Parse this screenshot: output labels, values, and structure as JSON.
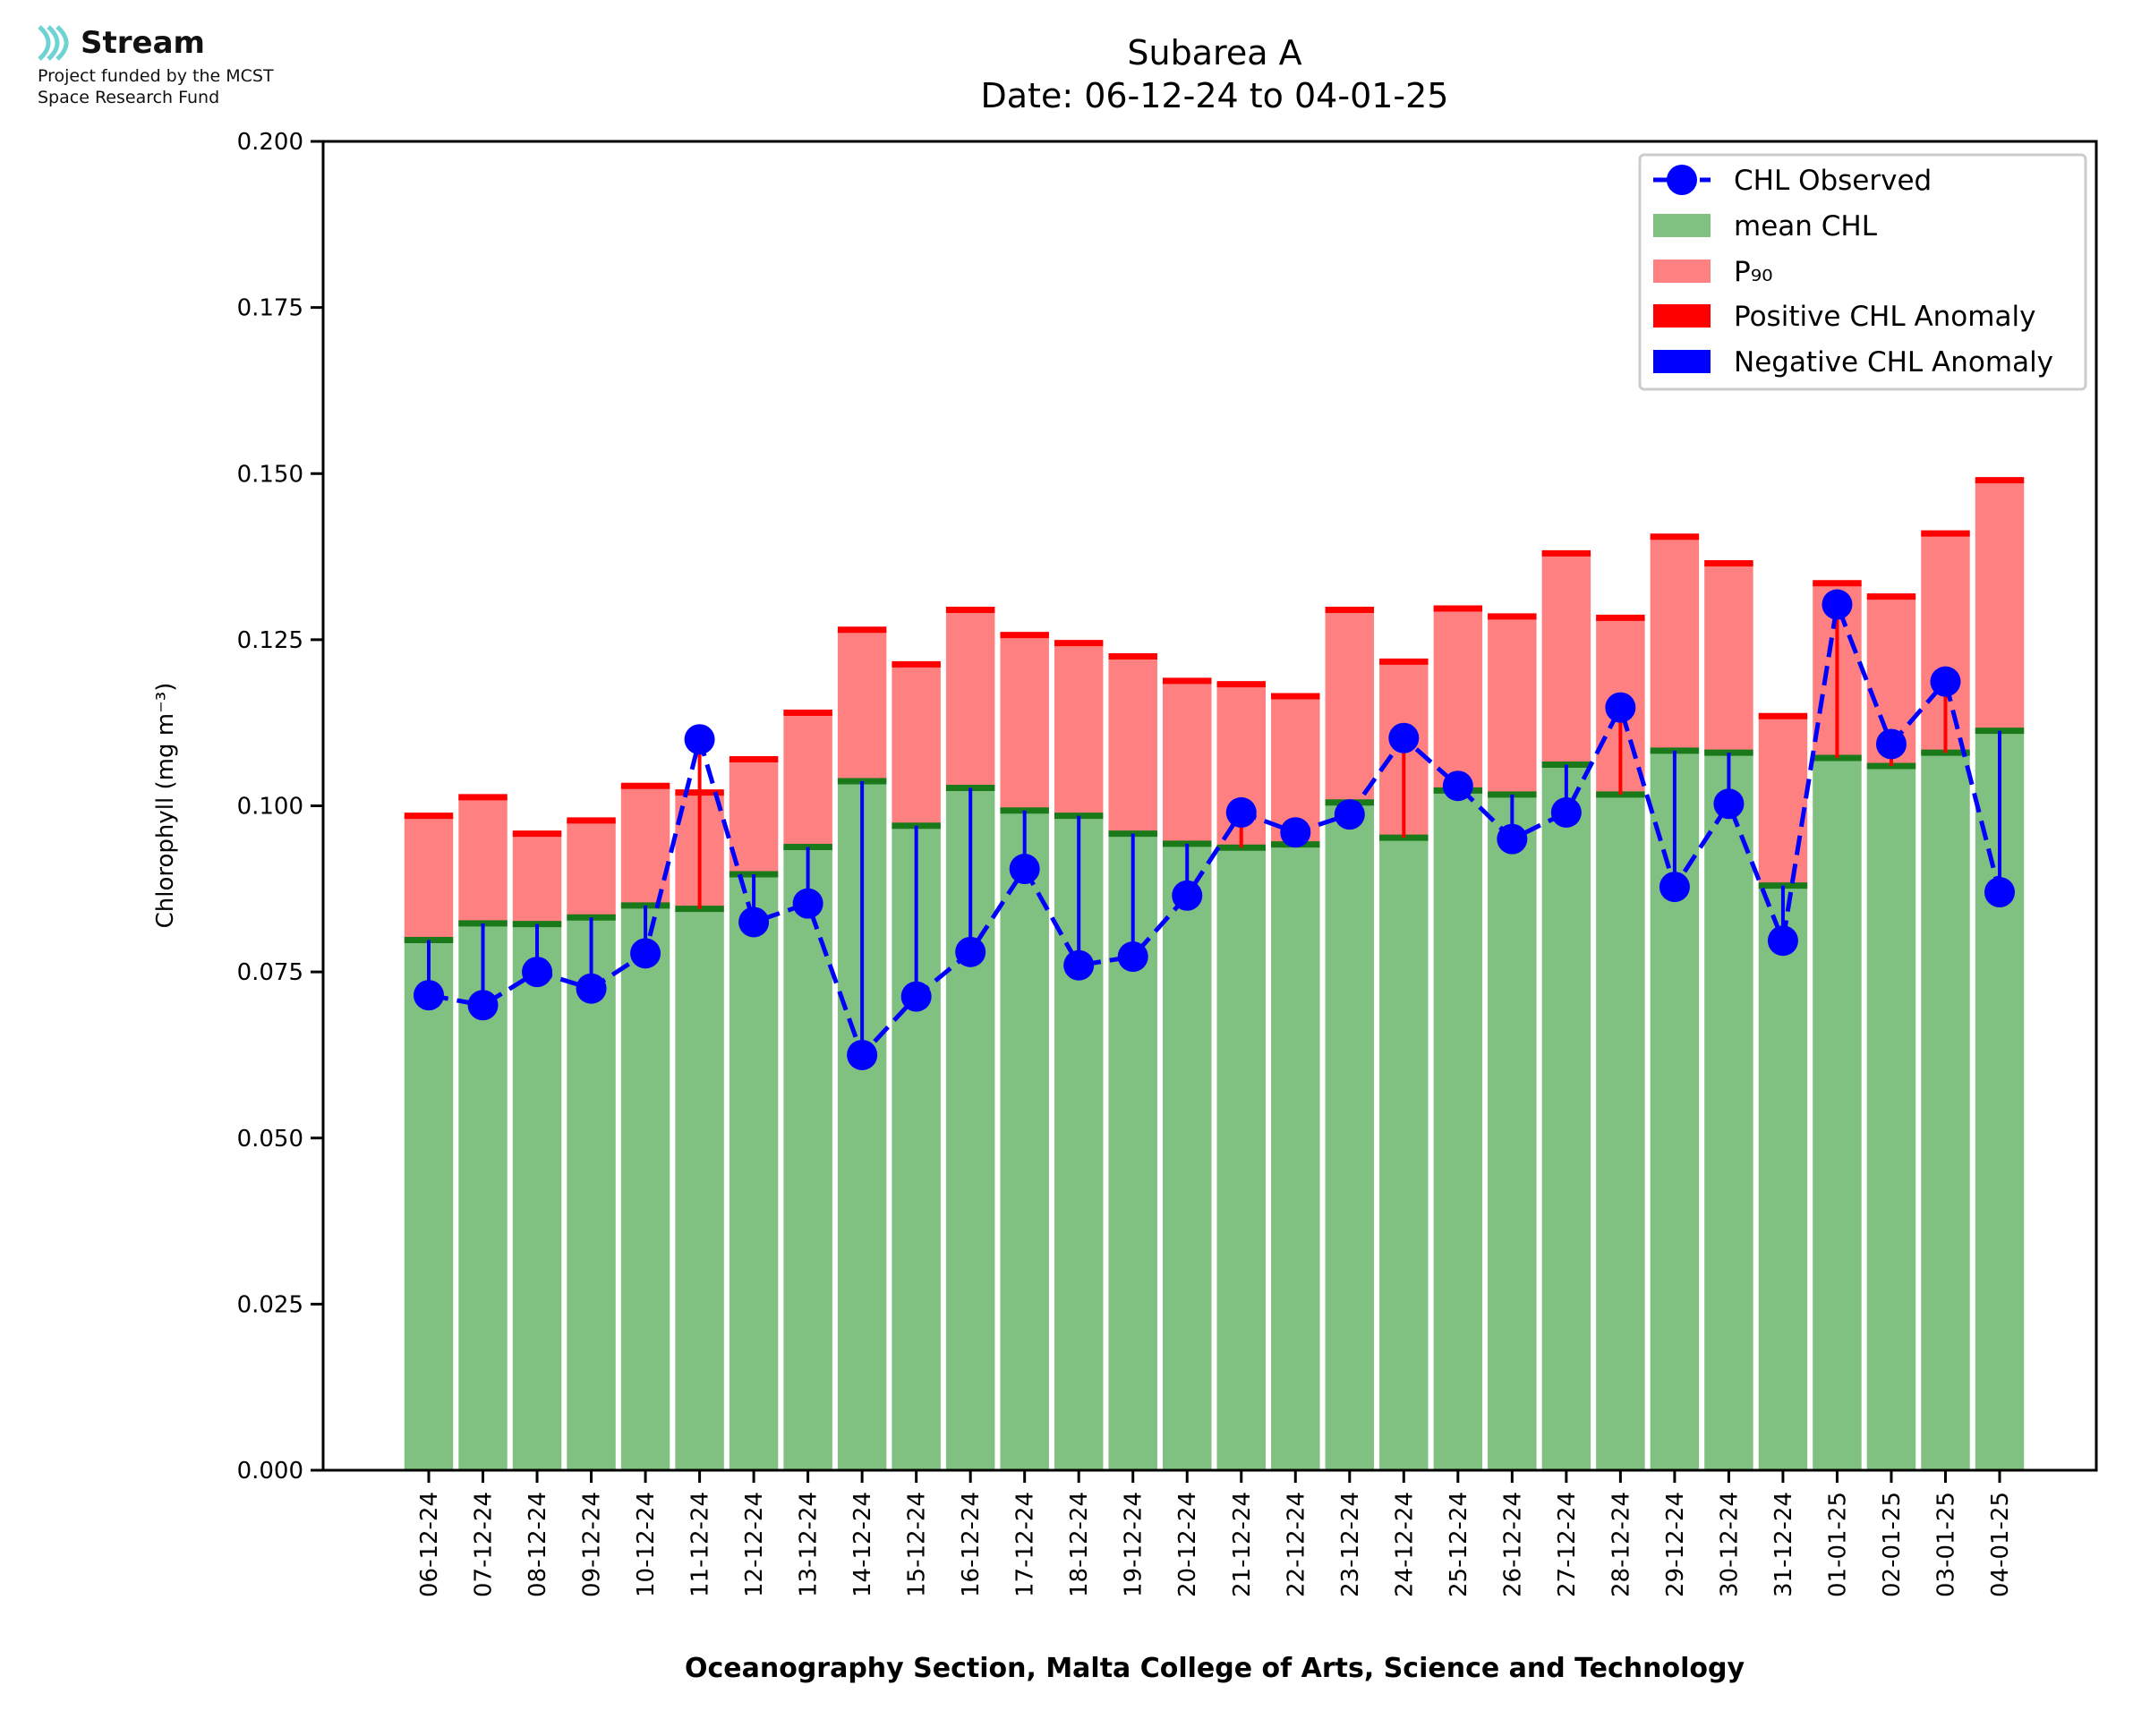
{
  "logo": {
    "brand": "Stream",
    "line1": "Project funded by the MCST",
    "line2": "Space Research Fund"
  },
  "chart_data": {
    "type": "bar",
    "title": "Subarea A",
    "subtitle": "Date: 06-12-24 to 04-01-25",
    "xlabel": "Oceanography Section, Malta College of Arts, Science and Technology",
    "ylabel": "Chlorophyll (mg m⁻³)",
    "ylim": [
      0,
      0.2
    ],
    "yticks": [
      "0.000",
      "0.025",
      "0.050",
      "0.075",
      "0.100",
      "0.125",
      "0.150",
      "0.175",
      "0.200"
    ],
    "categories": [
      "06-12-24",
      "07-12-24",
      "08-12-24",
      "09-12-24",
      "10-12-24",
      "11-12-24",
      "12-12-24",
      "13-12-24",
      "14-12-24",
      "15-12-24",
      "16-12-24",
      "17-12-24",
      "18-12-24",
      "19-12-24",
      "20-12-24",
      "21-12-24",
      "22-12-24",
      "23-12-24",
      "24-12-24",
      "25-12-24",
      "26-12-24",
      "27-12-24",
      "28-12-24",
      "29-12-24",
      "30-12-24",
      "31-12-24",
      "01-01-25",
      "02-01-25",
      "03-01-25",
      "04-01-25"
    ],
    "series": [
      {
        "name": "mean CHL",
        "values": [
          0.0798,
          0.0823,
          0.0822,
          0.0832,
          0.085,
          0.0845,
          0.0897,
          0.0938,
          0.1037,
          0.097,
          0.1027,
          0.0993,
          0.0985,
          0.0958,
          0.0943,
          0.0937,
          0.0942,
          0.1005,
          0.0952,
          0.1023,
          0.1017,
          0.1062,
          0.1017,
          0.1083,
          0.108,
          0.088,
          0.1072,
          0.106,
          0.108,
          0.1113
        ]
      },
      {
        "name": "P₉₀",
        "values": [
          0.0985,
          0.1013,
          0.0958,
          0.0978,
          0.103,
          0.102,
          0.107,
          0.114,
          0.1265,
          0.1213,
          0.1295,
          0.1257,
          0.1245,
          0.1225,
          0.1188,
          0.1183,
          0.1165,
          0.1295,
          0.1217,
          0.1297,
          0.1285,
          0.138,
          0.1283,
          0.1405,
          0.1365,
          0.1135,
          0.1335,
          0.1315,
          0.141,
          0.149
        ]
      },
      {
        "name": "CHL Observed",
        "values": [
          0.0715,
          0.07,
          0.075,
          0.0725,
          0.0778,
          0.11,
          0.0825,
          0.0853,
          0.0625,
          0.0713,
          0.078,
          0.0905,
          0.076,
          0.0773,
          0.0865,
          0.099,
          0.096,
          0.0987,
          0.1102,
          0.103,
          0.095,
          0.099,
          0.1148,
          0.0878,
          0.1003,
          0.0797,
          0.1303,
          0.1093,
          0.1187,
          0.087
        ]
      }
    ],
    "legend": {
      "position": "top-right",
      "entries": [
        "CHL Observed",
        "mean CHL",
        "P₉₀",
        "Positive CHL Anomaly",
        "Negative CHL Anomaly"
      ]
    },
    "grid": false,
    "colors": {
      "mean": "#80c080",
      "mean_edge": "#1a7a1a",
      "p90": "#ff8080",
      "p90_edge": "#ff0000",
      "positive": "#ff0000",
      "negative": "#0000ff",
      "observed": "#0000ff"
    }
  }
}
